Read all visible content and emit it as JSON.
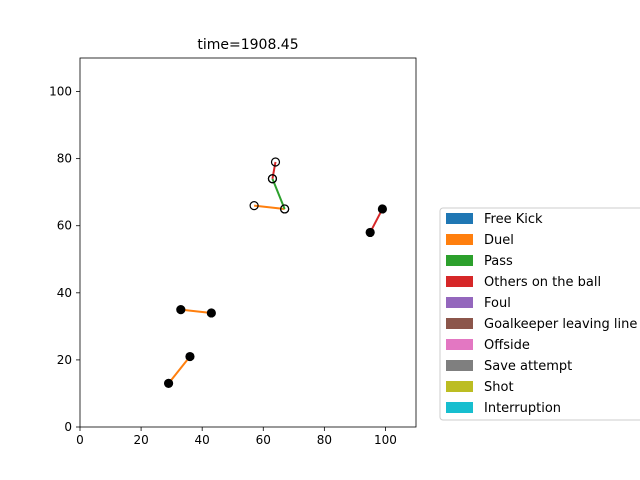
{
  "chart_data": {
    "type": "scatter",
    "title": "time=1908.45",
    "xlabel": "",
    "ylabel": "",
    "xlim": [
      0,
      110
    ],
    "ylim": [
      0,
      110
    ],
    "xticks": [
      0,
      20,
      40,
      60,
      80,
      100
    ],
    "yticks": [
      0,
      20,
      40,
      60,
      80,
      100
    ],
    "grid": false,
    "legend_position": "right",
    "legend": [
      {
        "label": "Free Kick",
        "color": "#1f77b4"
      },
      {
        "label": "Duel",
        "color": "#ff7f0e"
      },
      {
        "label": "Pass",
        "color": "#2ca02c"
      },
      {
        "label": "Others on the ball",
        "color": "#d62728"
      },
      {
        "label": "Foul",
        "color": "#9467bd"
      },
      {
        "label": "Goalkeeper leaving line",
        "color": "#8c564b"
      },
      {
        "label": "Offside",
        "color": "#e377c2"
      },
      {
        "label": "Save attempt",
        "color": "#7f7f7f"
      },
      {
        "label": "Shot",
        "color": "#bcbd22"
      },
      {
        "label": "Interruption",
        "color": "#17becf"
      }
    ],
    "segments": [
      {
        "event": "Duel",
        "color": "#ff7f0e",
        "from": [
          29,
          13
        ],
        "to": [
          36,
          21
        ],
        "fill": "black"
      },
      {
        "event": "Duel",
        "color": "#ff7f0e",
        "from": [
          33,
          35
        ],
        "to": [
          43,
          34
        ],
        "fill": "black"
      },
      {
        "event": "Others on the ball",
        "color": "#d62728",
        "from": [
          95,
          58
        ],
        "to": [
          99,
          65
        ],
        "fill": "black"
      },
      {
        "event": "Duel",
        "color": "#ff7f0e",
        "from": [
          57,
          66
        ],
        "to": [
          67,
          65
        ],
        "fill": "none"
      },
      {
        "event": "Pass",
        "color": "#2ca02c",
        "from": [
          63,
          74
        ],
        "to": [
          67,
          65
        ],
        "fill": "none"
      },
      {
        "event": "Others on the ball",
        "color": "#d62728",
        "from": [
          64,
          79
        ],
        "to": [
          63,
          74
        ],
        "fill": "none"
      }
    ]
  }
}
